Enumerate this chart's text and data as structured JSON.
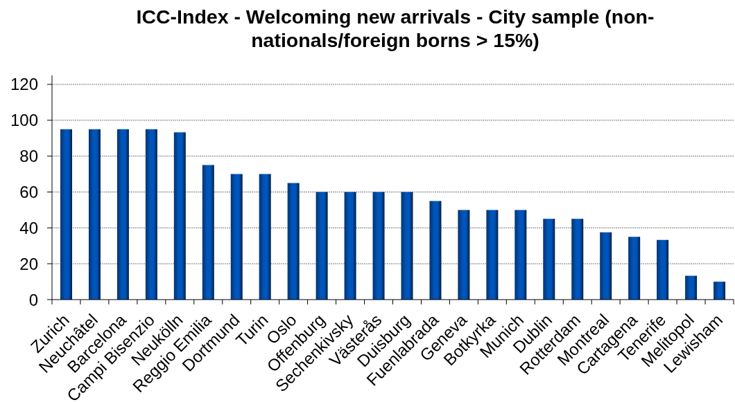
{
  "chart_data": {
    "type": "bar",
    "title": "ICC-Index - Welcoming new arrivals - City sample (non-nationals/foreign borns > 15%)",
    "categories": [
      "Zurich",
      "Neuchâtel",
      "Barcelona",
      "Campi Bisenzio",
      "Neukölln",
      "Reggio Emilia",
      "Dortmund",
      "Turin",
      "Oslo",
      "Offenburg",
      "Sechenkivsky",
      "Västerås",
      "Duisburg",
      "Fuenlabrada",
      "Geneva",
      "Botkyrka",
      "Munich",
      "Dublin",
      "Rotterdam",
      "Montreal",
      "Cartagena",
      "Tenerife",
      "Melitopol",
      "Lewisham"
    ],
    "values": [
      95,
      95,
      95,
      95,
      93.3,
      75,
      70,
      70,
      65,
      60,
      60,
      60,
      60,
      55,
      50,
      50,
      50,
      45,
      45,
      37.5,
      35,
      33.3,
      13.3,
      10
    ],
    "color": "#0055bb",
    "ylim": [
      0,
      125
    ],
    "yticks": [
      0,
      20,
      40,
      60,
      80,
      100,
      120
    ],
    "grid": "y"
  }
}
